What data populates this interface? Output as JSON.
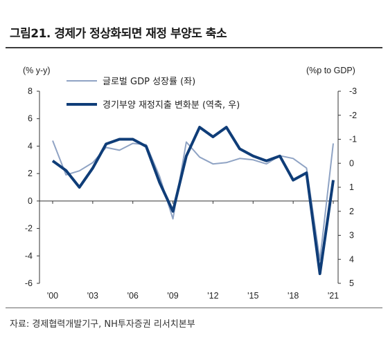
{
  "title": "그림21. 경제가 정상화되면 재정 부양도 축소",
  "source": "자료: 경제협력개발기구, NH투자증권 리서치본부",
  "colors": {
    "series1": "#8fa3c4",
    "series2": "#0f3d78"
  },
  "chart_data": {
    "type": "line",
    "x": [
      "2000",
      "2001",
      "2002",
      "2003",
      "2004",
      "2005",
      "2006",
      "2007",
      "2008",
      "2009",
      "2010",
      "2011",
      "2012",
      "2013",
      "2014",
      "2015",
      "2016",
      "2017",
      "2018",
      "2019",
      "2020",
      "2021"
    ],
    "xticks": [
      "'00",
      "'03",
      "'06",
      "'09",
      "'12",
      "'15",
      "'18",
      "'21"
    ],
    "left_axis": {
      "unit": "(% y-y)",
      "ylim": [
        -6,
        8
      ],
      "ticks": [
        "8",
        "6",
        "4",
        "2",
        "0",
        "-2",
        "-4",
        "-6"
      ]
    },
    "right_axis": {
      "unit": "(%p to GDP)",
      "ylim": [
        5,
        -3
      ],
      "inverted": true,
      "ticks": [
        "-3",
        "-2",
        "-1",
        "0",
        "1",
        "2",
        "3",
        "4",
        "5"
      ]
    },
    "series": [
      {
        "name": "글로벌 GDP 성장률 (좌)",
        "axis": "left",
        "values": [
          4.4,
          1.9,
          2.2,
          2.8,
          3.9,
          3.7,
          4.2,
          4.1,
          1.8,
          -1.3,
          4.3,
          3.2,
          2.7,
          2.8,
          3.1,
          3.0,
          2.7,
          3.3,
          3.1,
          2.4,
          -4.3,
          4.2
        ]
      },
      {
        "name": "경기부양 재정지출 변화분 (역축, 우)",
        "axis": "right",
        "values": [
          -0.1,
          0.3,
          1.0,
          0.2,
          -0.8,
          -1.0,
          -1.0,
          -0.7,
          0.8,
          2.0,
          -0.3,
          -1.5,
          -1.1,
          -1.5,
          -0.6,
          -0.3,
          -0.1,
          -0.3,
          0.7,
          0.4,
          4.6,
          0.7
        ]
      }
    ]
  }
}
